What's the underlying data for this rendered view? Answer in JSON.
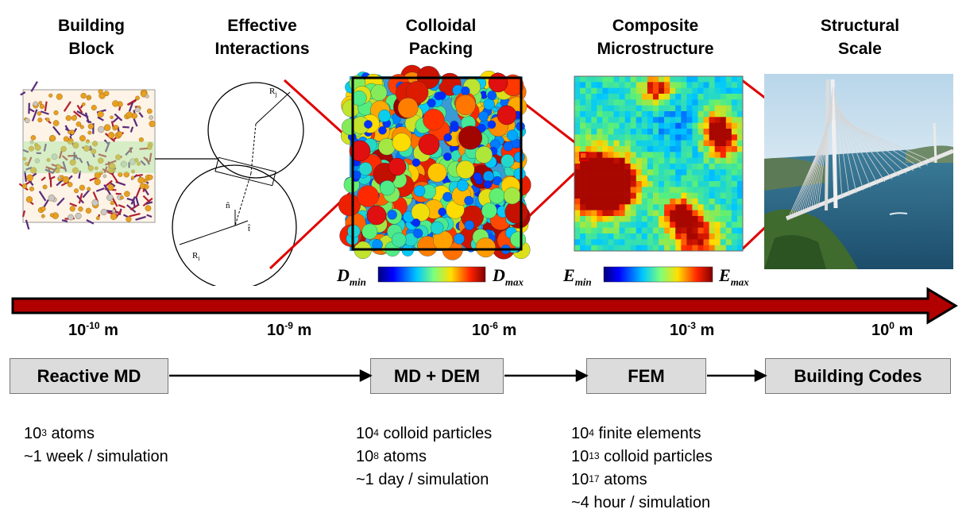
{
  "stages": [
    {
      "title_l1": "Building",
      "title_l2": "Block"
    },
    {
      "title_l1": "Effective",
      "title_l2": "Interactions"
    },
    {
      "title_l1": "Colloidal",
      "title_l2": "Packing"
    },
    {
      "title_l1": "Composite",
      "title_l2": "Microstructure"
    },
    {
      "title_l1": "Structural",
      "title_l2": "Scale"
    }
  ],
  "diagram_labels": {
    "rj": "R",
    "rj_sub": "j",
    "ri": "R",
    "ri_sub": "i",
    "n_hat": "n̂",
    "t_hat": "t̂"
  },
  "colorbars": {
    "d": {
      "label": "D",
      "min_sub": "min",
      "max_sub": "max"
    },
    "e": {
      "label": "E",
      "min_sub": "min",
      "max_sub": "max"
    }
  },
  "scales": [
    {
      "base": "10",
      "exp": "-10",
      "unit": " m"
    },
    {
      "base": "10",
      "exp": "-9",
      "unit": " m"
    },
    {
      "base": "10",
      "exp": "-6",
      "unit": " m"
    },
    {
      "base": "10",
      "exp": "-3",
      "unit": " m"
    },
    {
      "base": "10",
      "exp": "0",
      "unit": " m"
    }
  ],
  "methods": [
    "Reactive MD",
    "MD + DEM",
    "FEM",
    "Building Codes"
  ],
  "details": {
    "reactive_md": [
      {
        "base": "10",
        "exp": "3",
        "rest": " atoms"
      },
      {
        "base": "",
        "exp": "",
        "rest": "~1 week / simulation"
      }
    ],
    "md_dem": [
      {
        "base": "10",
        "exp": "4",
        "rest": " colloid particles"
      },
      {
        "base": "10",
        "exp": "8",
        "rest": " atoms"
      },
      {
        "base": "",
        "exp": "",
        "rest": "~1 day / simulation"
      }
    ],
    "fem": [
      {
        "base": "10",
        "exp": "4",
        "rest": " finite elements"
      },
      {
        "base": "10",
        "exp": "13",
        "rest": " colloid particles"
      },
      {
        "base": "10",
        "exp": "17",
        "rest": " atoms"
      },
      {
        "base": "",
        "exp": "",
        "rest": "~4 hour / simulation"
      }
    ]
  },
  "colors": {
    "arrow_red": "#b00000",
    "zoom_line": "#e00000",
    "box_fill": "#dcdcdc"
  }
}
